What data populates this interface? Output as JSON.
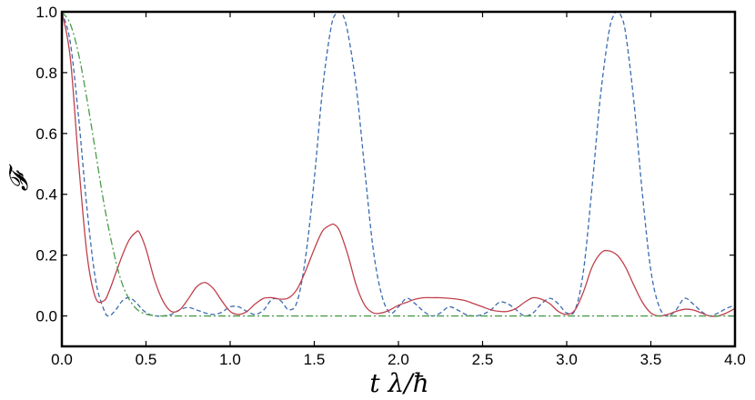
{
  "chart_data": {
    "type": "line",
    "xlabel": "t λ/ħ",
    "ylabel": "𝓕",
    "xlim": [
      0.0,
      4.0
    ],
    "ylim": [
      -0.1,
      1.0
    ],
    "x_ticks": [
      "0.0",
      "0.5",
      "1.0",
      "1.5",
      "2.0",
      "2.5",
      "3.0",
      "3.5",
      "4.0"
    ],
    "y_ticks": [
      "0.0",
      "0.2",
      "0.4",
      "0.6",
      "0.8",
      "1.0"
    ],
    "series": [
      {
        "style": "dashed",
        "color": "#3b6bb0",
        "x": [
          0.0,
          0.05,
          0.1,
          0.15,
          0.2,
          0.25,
          0.28,
          0.32,
          0.36,
          0.4,
          0.44,
          0.48,
          0.52,
          0.56,
          0.6,
          0.65,
          0.7,
          0.75,
          0.8,
          0.85,
          0.9,
          0.95,
          1.0,
          1.05,
          1.1,
          1.15,
          1.2,
          1.25,
          1.3,
          1.35,
          1.4,
          1.45,
          1.5,
          1.55,
          1.6,
          1.63,
          1.65,
          1.67,
          1.7,
          1.75,
          1.8,
          1.85,
          1.9,
          1.95,
          2.0,
          2.05,
          2.1,
          2.15,
          2.2,
          2.25,
          2.3,
          2.35,
          2.4,
          2.45,
          2.5,
          2.55,
          2.6,
          2.65,
          2.7,
          2.75,
          2.8,
          2.85,
          2.9,
          2.95,
          3.0,
          3.05,
          3.1,
          3.15,
          3.2,
          3.25,
          3.28,
          3.3,
          3.32,
          3.35,
          3.4,
          3.45,
          3.5,
          3.55,
          3.6,
          3.65,
          3.7,
          3.75,
          3.8,
          3.85,
          3.9,
          3.95,
          4.0
        ],
        "y": [
          1.0,
          0.9,
          0.65,
          0.35,
          0.12,
          0.02,
          0.0,
          0.02,
          0.05,
          0.06,
          0.045,
          0.02,
          0.005,
          0.0,
          0.0,
          0.005,
          0.02,
          0.028,
          0.02,
          0.01,
          0.005,
          0.012,
          0.03,
          0.03,
          0.015,
          0.005,
          0.02,
          0.055,
          0.05,
          0.02,
          0.05,
          0.2,
          0.45,
          0.75,
          0.95,
          0.995,
          1.0,
          0.99,
          0.93,
          0.75,
          0.48,
          0.22,
          0.07,
          0.01,
          0.03,
          0.058,
          0.04,
          0.015,
          0.0,
          0.01,
          0.03,
          0.02,
          0.005,
          0.0,
          0.005,
          0.02,
          0.045,
          0.04,
          0.02,
          0.0,
          0.01,
          0.04,
          0.058,
          0.04,
          0.01,
          0.02,
          0.15,
          0.42,
          0.72,
          0.93,
          0.99,
          1.0,
          0.99,
          0.93,
          0.7,
          0.4,
          0.15,
          0.03,
          0.0,
          0.02,
          0.058,
          0.04,
          0.015,
          0.0,
          0.01,
          0.025,
          0.035
        ]
      },
      {
        "style": "solid",
        "color": "#c0404c",
        "x": [
          0.0,
          0.05,
          0.1,
          0.15,
          0.2,
          0.25,
          0.28,
          0.32,
          0.36,
          0.4,
          0.44,
          0.46,
          0.5,
          0.55,
          0.6,
          0.65,
          0.7,
          0.75,
          0.8,
          0.85,
          0.9,
          0.95,
          1.0,
          1.05,
          1.1,
          1.15,
          1.2,
          1.25,
          1.3,
          1.35,
          1.4,
          1.45,
          1.5,
          1.55,
          1.6,
          1.62,
          1.65,
          1.7,
          1.75,
          1.8,
          1.85,
          1.9,
          1.95,
          2.0,
          2.05,
          2.1,
          2.15,
          2.2,
          2.25,
          2.3,
          2.35,
          2.4,
          2.45,
          2.5,
          2.55,
          2.6,
          2.65,
          2.7,
          2.75,
          2.8,
          2.85,
          2.9,
          2.95,
          3.0,
          3.05,
          3.1,
          3.15,
          3.2,
          3.24,
          3.3,
          3.35,
          3.4,
          3.45,
          3.5,
          3.55,
          3.6,
          3.65,
          3.7,
          3.75,
          3.8,
          3.85,
          3.9,
          3.95,
          4.0
        ],
        "y": [
          1.0,
          0.85,
          0.5,
          0.2,
          0.06,
          0.05,
          0.08,
          0.14,
          0.2,
          0.25,
          0.275,
          0.275,
          0.22,
          0.12,
          0.05,
          0.015,
          0.02,
          0.055,
          0.095,
          0.11,
          0.09,
          0.05,
          0.015,
          0.005,
          0.015,
          0.04,
          0.058,
          0.06,
          0.055,
          0.06,
          0.09,
          0.15,
          0.22,
          0.28,
          0.3,
          0.3,
          0.28,
          0.2,
          0.1,
          0.035,
          0.01,
          0.01,
          0.02,
          0.035,
          0.045,
          0.055,
          0.06,
          0.06,
          0.06,
          0.058,
          0.055,
          0.05,
          0.04,
          0.03,
          0.02,
          0.015,
          0.015,
          0.025,
          0.045,
          0.06,
          0.055,
          0.04,
          0.015,
          0.005,
          0.02,
          0.08,
          0.16,
          0.205,
          0.215,
          0.2,
          0.16,
          0.1,
          0.045,
          0.01,
          0.0,
          0.005,
          0.015,
          0.022,
          0.02,
          0.01,
          0.0,
          0.0,
          0.01,
          0.025
        ]
      },
      {
        "style": "dashdot",
        "color": "#4a9a4a",
        "x": [
          0.0,
          0.05,
          0.1,
          0.15,
          0.2,
          0.25,
          0.3,
          0.35,
          0.4,
          0.45,
          0.5,
          0.55,
          0.6,
          0.7,
          0.8,
          1.0,
          1.5,
          2.0,
          3.0,
          4.0
        ],
        "y": [
          1.0,
          0.96,
          0.86,
          0.71,
          0.54,
          0.37,
          0.23,
          0.12,
          0.055,
          0.02,
          0.006,
          0.001,
          0.0,
          0.0,
          0.0,
          0.0,
          0.0,
          0.0,
          0.0,
          0.0
        ]
      }
    ]
  }
}
